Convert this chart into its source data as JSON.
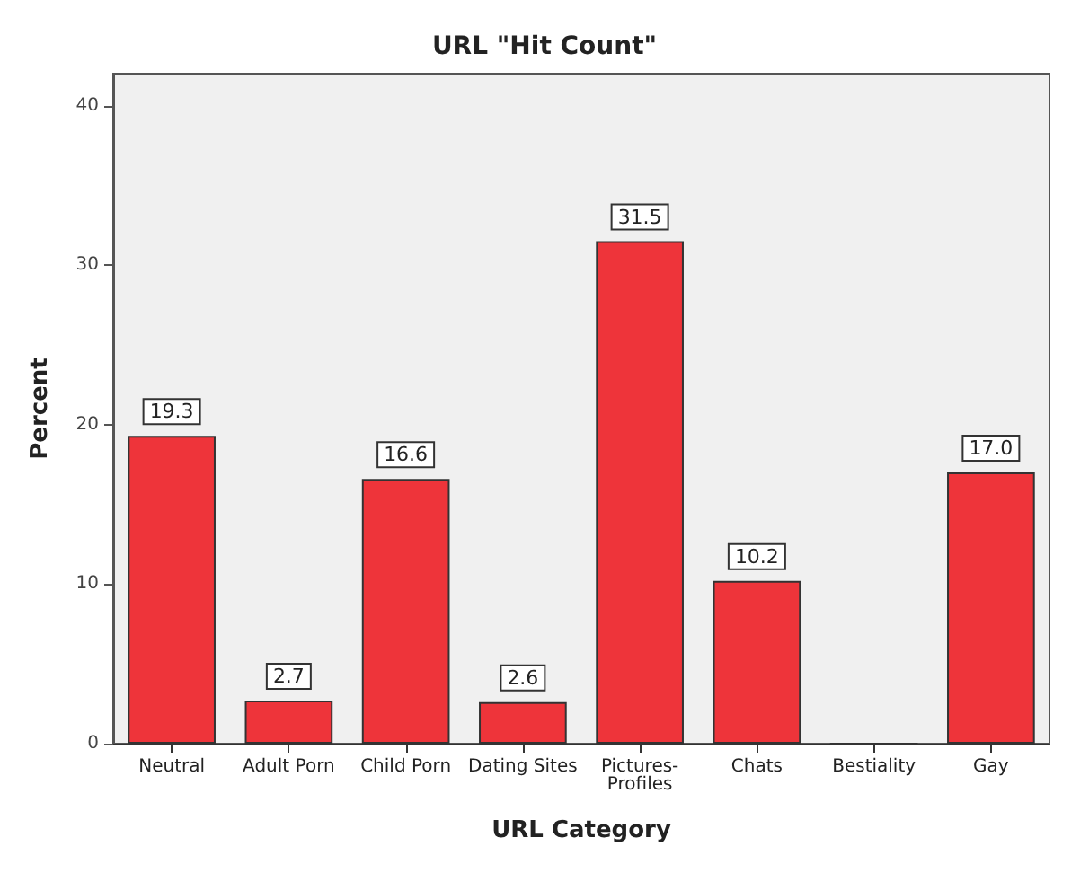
{
  "chart_data": {
    "type": "bar",
    "title": "URL \"Hit Count\"",
    "xlabel": "URL Category",
    "ylabel": "Percent",
    "categories": [
      "Neutral",
      "Adult Porn",
      "Child Porn",
      "Dating Sites",
      "Pictures-Profiles",
      "Chats",
      "Bestiality",
      "Gay"
    ],
    "values": [
      19.3,
      2.7,
      16.6,
      2.6,
      31.5,
      10.2,
      0,
      17.0
    ],
    "value_labels": [
      "19.3",
      "2.7",
      "16.6",
      "2.6",
      "31.5",
      "10.2",
      null,
      "17.0"
    ],
    "color": "#ee343a",
    "ylim": [
      0,
      42
    ],
    "yticks": [
      0,
      10,
      20,
      30,
      40
    ],
    "grid": false
  }
}
